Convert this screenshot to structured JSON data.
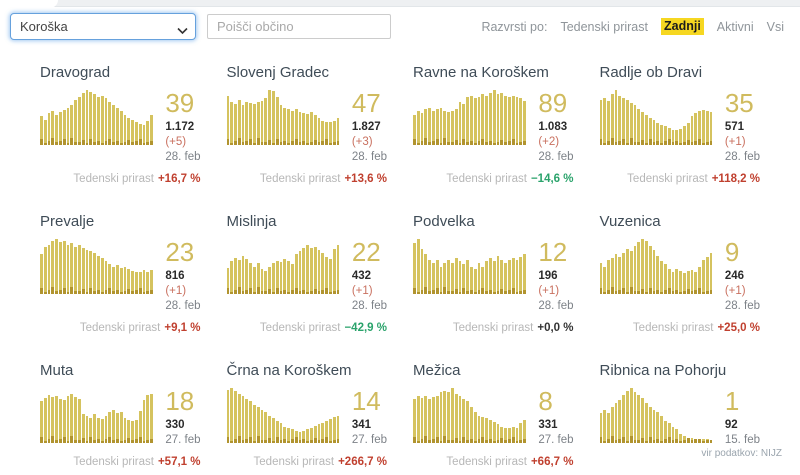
{
  "topbar": {
    "region_select": {
      "value": "Koroška"
    },
    "search": {
      "placeholder": "Poišči občino"
    },
    "sort": {
      "label": "Razvrsti po:",
      "options": [
        {
          "label": "Tedenski prirast",
          "active": false
        },
        {
          "label": "Zadnji",
          "active": true
        },
        {
          "label": "Aktivni",
          "active": false
        },
        {
          "label": "Vsi",
          "active": false
        }
      ]
    }
  },
  "labels": {
    "weekly_growth": "Tedenski prirast"
  },
  "footer": {
    "source": "vir podatkov: NIJZ"
  },
  "colors": {
    "bar_color": "#d5c35f",
    "bar_dark": "#b1942f",
    "accent_number": "#d0bb5e",
    "positive_red": "#c0402f",
    "negative_green": "#2aa36b",
    "highlight_yellow": "#f6d721"
  },
  "daily_pattern": [
    0.1,
    0.04,
    0.07,
    0.12,
    0.05,
    0.08,
    0.1,
    0.04,
    0.12,
    0.06,
    0.05,
    0.09,
    0.04,
    0.1,
    0.06,
    0.08,
    0.04,
    0.07,
    0.1,
    0.05,
    0.08,
    0.04,
    0.06,
    0.09,
    0.05,
    0.07,
    0.1,
    0.04,
    0.06,
    0.08
  ],
  "cards": [
    {
      "title": "Dravograd",
      "last": "39",
      "total": "1.172",
      "delta": "(+5)",
      "date": "28. feb",
      "growth": "+16,7 %",
      "trend": "up",
      "bars": [
        0.52,
        0.45,
        0.58,
        0.62,
        0.55,
        0.6,
        0.63,
        0.68,
        0.72,
        0.82,
        0.88,
        0.95,
        1.0,
        0.97,
        0.92,
        0.88,
        0.9,
        0.85,
        0.78,
        0.72,
        0.68,
        0.62,
        0.55,
        0.5,
        0.45,
        0.42,
        0.38,
        0.36,
        0.44,
        0.54
      ]
    },
    {
      "title": "Slovenj Gradec",
      "last": "47",
      "total": "1.827",
      "delta": "(+3)",
      "date": "28. feb",
      "growth": "+13,6 %",
      "trend": "up",
      "bars": [
        0.9,
        0.78,
        0.75,
        0.82,
        0.72,
        0.78,
        0.76,
        0.74,
        0.78,
        0.8,
        0.85,
        1.0,
        0.98,
        0.88,
        0.72,
        0.68,
        0.65,
        0.62,
        0.66,
        0.6,
        0.58,
        0.56,
        0.6,
        0.54,
        0.5,
        0.44,
        0.42,
        0.42,
        0.44,
        0.5
      ]
    },
    {
      "title": "Ravne na Koroškem",
      "last": "89",
      "total": "1.083",
      "delta": "(+2)",
      "date": "28. feb",
      "growth": "−14,6 %",
      "trend": "down",
      "bars": [
        0.55,
        0.62,
        0.58,
        0.65,
        0.68,
        0.62,
        0.66,
        0.68,
        0.62,
        0.6,
        0.62,
        0.66,
        0.78,
        0.74,
        0.88,
        0.9,
        0.86,
        0.88,
        0.92,
        0.9,
        0.95,
        1.0,
        0.93,
        0.95,
        0.9,
        0.87,
        0.9,
        0.88,
        0.85,
        0.8
      ]
    },
    {
      "title": "Radlje ob Dravi",
      "last": "35",
      "total": "571",
      "delta": "(+1)",
      "date": "28. feb",
      "growth": "+118,2 %",
      "trend": "up",
      "bars": [
        0.82,
        0.86,
        0.8,
        0.92,
        1.0,
        0.9,
        0.86,
        0.82,
        0.76,
        0.72,
        0.66,
        0.6,
        0.55,
        0.5,
        0.45,
        0.4,
        0.37,
        0.34,
        0.31,
        0.28,
        0.27,
        0.3,
        0.34,
        0.4,
        0.52,
        0.58,
        0.62,
        0.64,
        0.62,
        0.6
      ]
    },
    {
      "title": "Prevalje",
      "last": "23",
      "total": "816",
      "delta": "(+1)",
      "date": "28. feb",
      "growth": "+9,1 %",
      "trend": "up",
      "bars": [
        0.72,
        0.85,
        0.9,
        0.96,
        1.0,
        0.94,
        0.96,
        0.9,
        0.92,
        0.86,
        0.9,
        0.84,
        0.8,
        0.78,
        0.74,
        0.7,
        0.66,
        0.6,
        0.55,
        0.5,
        0.53,
        0.48,
        0.5,
        0.46,
        0.42,
        0.4,
        0.4,
        0.43,
        0.4,
        0.43
      ]
    },
    {
      "title": "Mislinja",
      "last": "22",
      "total": "432",
      "delta": "(+1)",
      "date": "28. feb",
      "growth": "−42,9 %",
      "trend": "down",
      "bars": [
        0.48,
        0.6,
        0.66,
        0.62,
        0.7,
        0.64,
        0.56,
        0.5,
        0.56,
        0.46,
        0.42,
        0.5,
        0.56,
        0.6,
        0.58,
        0.63,
        0.6,
        0.55,
        0.72,
        0.78,
        0.84,
        0.9,
        0.84,
        0.86,
        0.8,
        0.74,
        0.68,
        0.64,
        0.82,
        0.9
      ]
    },
    {
      "title": "Podvelka",
      "last": "12",
      "total": "196",
      "delta": "(+1)",
      "date": "28. feb",
      "growth": "+0,0 %",
      "trend": "flat",
      "bars": [
        0.92,
        1.0,
        0.82,
        0.72,
        0.62,
        0.56,
        0.62,
        0.5,
        0.56,
        0.62,
        0.56,
        0.66,
        0.6,
        0.55,
        0.62,
        0.5,
        0.46,
        0.56,
        0.5,
        0.6,
        0.66,
        0.6,
        0.7,
        0.62,
        0.56,
        0.62,
        0.66,
        0.62,
        0.68,
        0.72
      ]
    },
    {
      "title": "Vuzenica",
      "last": "9",
      "total": "246",
      "delta": "(+1)",
      "date": "28. feb",
      "growth": "+25,0 %",
      "trend": "up",
      "bars": [
        0.56,
        0.5,
        0.62,
        0.66,
        0.72,
        0.68,
        0.74,
        0.82,
        0.78,
        0.88,
        0.95,
        1.0,
        0.97,
        0.88,
        0.8,
        0.7,
        0.6,
        0.55,
        0.45,
        0.4,
        0.46,
        0.42,
        0.38,
        0.42,
        0.44,
        0.4,
        0.5,
        0.62,
        0.68,
        0.74
      ]
    },
    {
      "title": "Muta",
      "last": "18",
      "total": "330",
      "delta": null,
      "date": "27. feb",
      "growth": "+57,1 %",
      "trend": "up",
      "bars": [
        0.76,
        0.82,
        0.88,
        0.84,
        0.86,
        0.8,
        0.78,
        0.86,
        0.9,
        0.84,
        0.8,
        0.52,
        0.5,
        0.46,
        0.52,
        0.46,
        0.44,
        0.5,
        0.56,
        0.6,
        0.54,
        0.56,
        0.46,
        0.42,
        0.4,
        0.42,
        0.58,
        0.78,
        0.88,
        0.9
      ]
    },
    {
      "title": "Črna na Koroškem",
      "last": "14",
      "total": "341",
      "delta": null,
      "date": "27. feb",
      "growth": "+266,7 %",
      "trend": "up",
      "bars": [
        0.97,
        1.0,
        0.94,
        0.9,
        0.86,
        0.8,
        0.76,
        0.7,
        0.66,
        0.6,
        0.56,
        0.5,
        0.46,
        0.4,
        0.36,
        0.3,
        0.28,
        0.25,
        0.22,
        0.2,
        0.22,
        0.25,
        0.28,
        0.31,
        0.34,
        0.37,
        0.4,
        0.44,
        0.47,
        0.5
      ]
    },
    {
      "title": "Mežica",
      "last": "8",
      "total": "331",
      "delta": null,
      "date": "27. feb",
      "growth": "+66,7 %",
      "trend": "up",
      "bars": [
        0.8,
        0.86,
        0.82,
        0.86,
        0.8,
        0.84,
        0.86,
        0.92,
        0.95,
        0.92,
        1.0,
        0.9,
        0.86,
        0.8,
        0.76,
        0.66,
        0.56,
        0.5,
        0.48,
        0.45,
        0.42,
        0.38,
        0.35,
        0.3,
        0.28,
        0.28,
        0.3,
        0.28,
        0.36,
        0.42
      ]
    },
    {
      "title": "Ribnica na Pohorju",
      "last": "1",
      "total": "92",
      "delta": null,
      "date": "15. feb",
      "growth": null,
      "trend": null,
      "bars": [
        0.55,
        0.6,
        0.55,
        0.66,
        0.72,
        0.78,
        0.88,
        0.95,
        1.0,
        0.92,
        0.88,
        0.82,
        0.72,
        0.66,
        0.6,
        0.56,
        0.5,
        0.4,
        0.36,
        0.3,
        0.26,
        0.16,
        0.12,
        0.1,
        0.09,
        0.08,
        0.08,
        0.07,
        0.07,
        0.06
      ]
    }
  ]
}
